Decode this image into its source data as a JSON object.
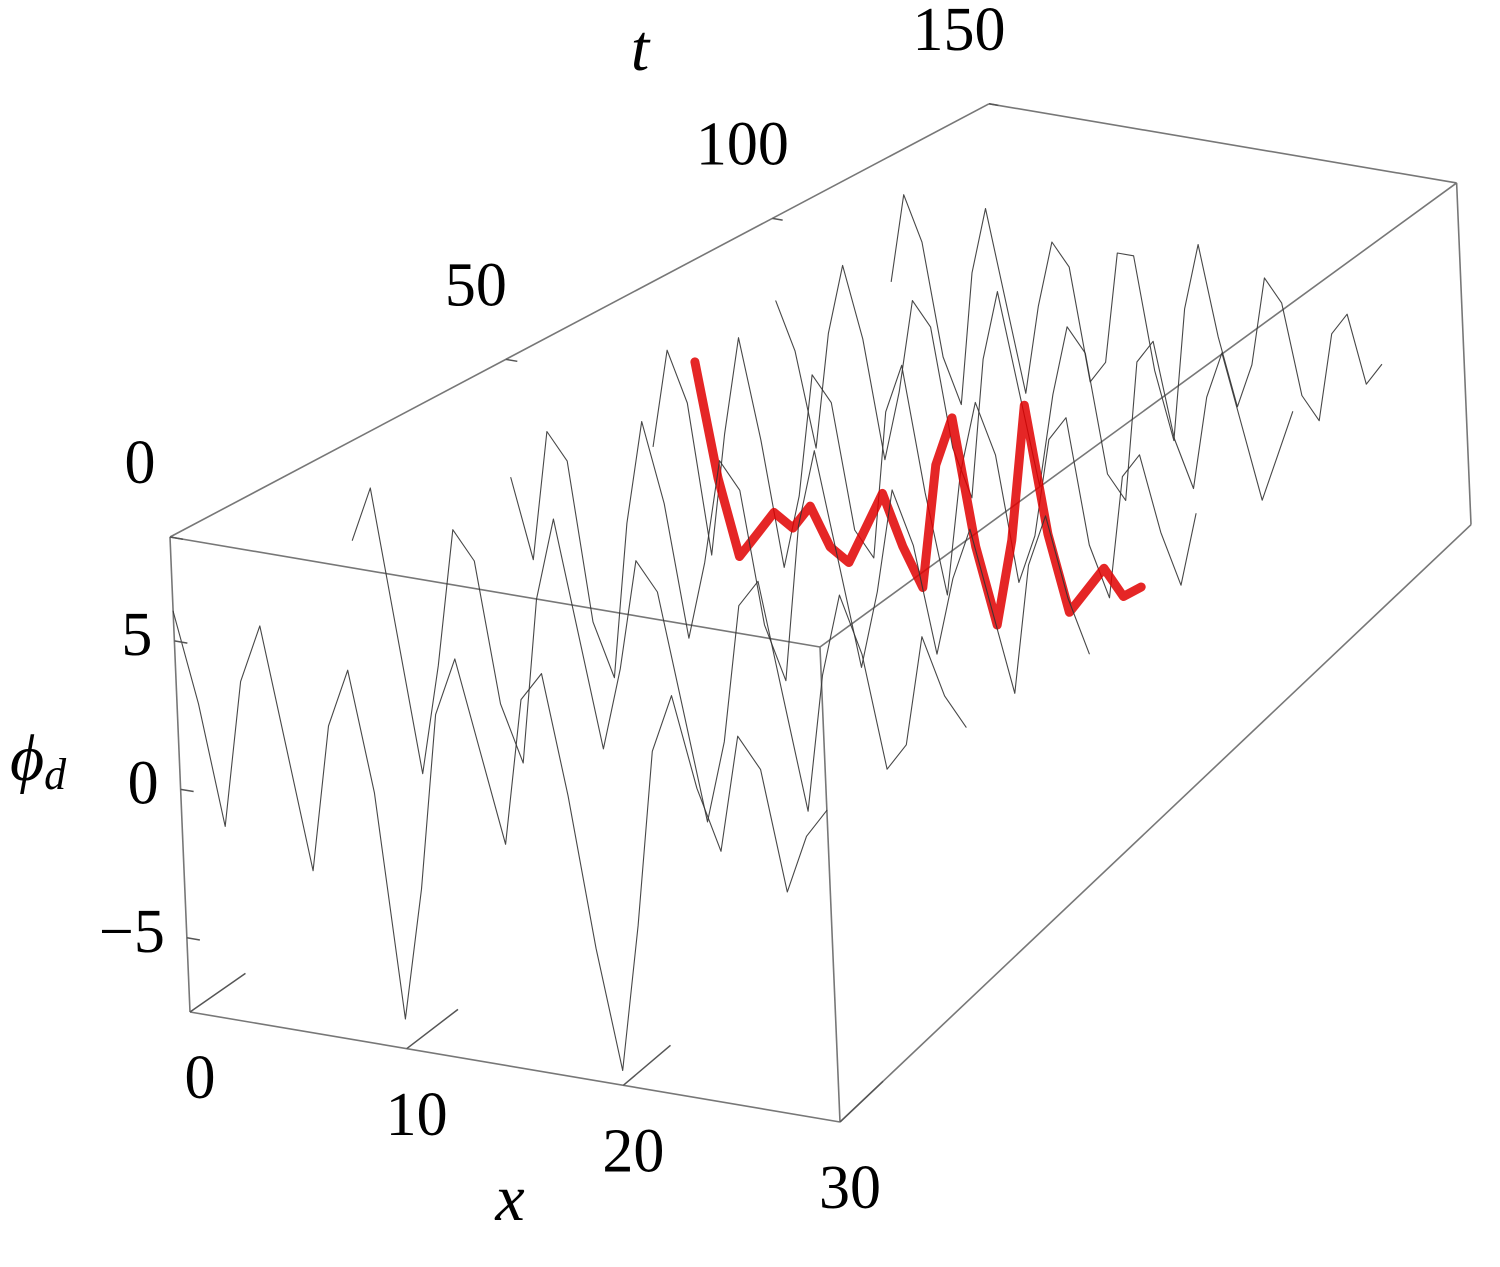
{
  "chart_data": {
    "type": "waterfall3d",
    "xlabel": "x",
    "tlabel": "t",
    "ylabel": {
      "symbol": "ϕ",
      "subscript": "d"
    },
    "xlim": [
      0,
      30
    ],
    "tlim": [
      0,
      150
    ],
    "ylim": [
      -7.5,
      8.5
    ],
    "xticks": [
      0,
      10,
      20,
      30
    ],
    "tticks": [
      0,
      50,
      100,
      150
    ],
    "yticks": [
      5,
      0,
      {
        "value": -5,
        "label": "−5"
      }
    ],
    "x": [
      0,
      1,
      2,
      3,
      4,
      5,
      6,
      7,
      8,
      9,
      10,
      11,
      12,
      13,
      14,
      15,
      16,
      17,
      18,
      19,
      20,
      21,
      22,
      23,
      24,
      25,
      26,
      27,
      28,
      29,
      30
    ],
    "series": [
      {
        "t": 125,
        "color": "#333333",
        "values": [
          3,
          7,
          5,
          0,
          -2,
          4,
          7,
          3,
          -1,
          3,
          6,
          5,
          0,
          1,
          6,
          6,
          1,
          -2,
          4,
          7,
          3,
          0,
          2,
          6,
          5,
          1,
          0,
          4,
          5,
          2,
          3
        ]
      },
      {
        "t": 100,
        "color": "#333333",
        "values": [
          5,
          3,
          -1,
          4,
          7,
          4,
          -1,
          2,
          6,
          5,
          0,
          -2,
          4,
          7,
          3,
          -1,
          3,
          6,
          5,
          0,
          -1,
          5,
          6,
          2,
          0,
          4,
          6,
          3,
          0,
          2,
          4
        ]
      },
      {
        "t": 75,
        "color": "#333333",
        "values": [
          2,
          6,
          4,
          -2,
          3,
          7,
          3,
          -2,
          1,
          6,
          5,
          0,
          -1,
          5,
          7,
          2,
          -2,
          3,
          6,
          4,
          -1,
          1,
          5,
          6,
          1,
          -1,
          4,
          5,
          2,
          0,
          3
        ]
      },
      {
        "t": 70,
        "color": "#e00000",
        "values": [
          null,
          null,
          null,
          null,
          6.5,
          2,
          -1,
          0,
          1,
          0.5,
          1.5,
          0,
          -0.5,
          1,
          2.5,
          0.5,
          -1,
          4,
          6,
          1,
          -2,
          1.5,
          7,
          2,
          -1,
          0,
          1,
          0,
          0.5,
          null,
          null
        ]
      },
      {
        "t": 50,
        "color": "#333333",
        "values": [
          4,
          1,
          6,
          5,
          -1,
          -3,
          3,
          7,
          4,
          -1,
          2,
          6,
          5,
          0,
          -2,
          4,
          7,
          3,
          -1,
          2,
          6,
          4,
          0,
          3,
          5,
          2,
          -1,
          4,
          6,
          3,
          1
        ]
      },
      {
        "t": 25,
        "color": "#333333",
        "values": [
          5,
          7,
          2,
          -3,
          1,
          6,
          5,
          0,
          -2,
          4,
          7,
          3,
          -1,
          2,
          6,
          5,
          1,
          -3,
          0,
          5,
          6,
          2,
          -2,
          3,
          6,
          4,
          0,
          1,
          5,
          3,
          2
        ]
      },
      {
        "t": 0,
        "color": "#333333",
        "values": [
          6,
          3,
          -1,
          4,
          6,
          2,
          -2,
          3,
          5,
          1,
          -6.5,
          -2,
          4,
          6,
          3,
          0,
          5,
          6,
          2,
          -3,
          -7,
          -2,
          4,
          6,
          3,
          1,
          5,
          4,
          0,
          2,
          3
        ]
      }
    ]
  }
}
